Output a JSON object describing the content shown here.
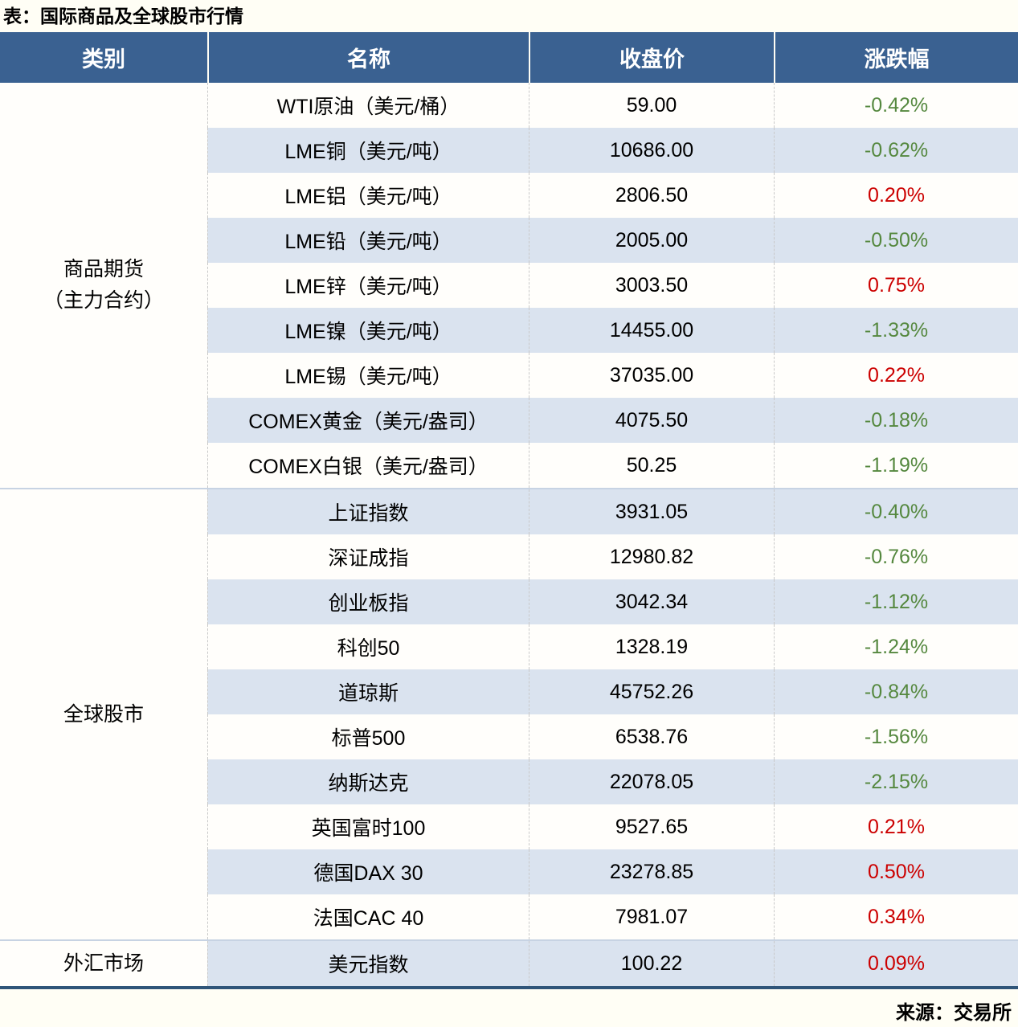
{
  "title": "表：国际商品及全球股市行情",
  "source": "来源：交易所",
  "colors": {
    "header_bg": "#3a6191",
    "header_text": "#ffffff",
    "row_bg": "#fffefb",
    "row_alt_bg": "#dae3ef",
    "up": "#cc0000",
    "down": "#55883f",
    "bottom_border": "#2f5579"
  },
  "chart_data": {
    "type": "table",
    "title": "表：国际商品及全球股市行情",
    "columns": [
      "类别",
      "名称",
      "收盘价",
      "涨跌幅"
    ],
    "sections": [
      {
        "category_lines": [
          "商品期货",
          "（主力合约）"
        ],
        "rows": [
          {
            "name": "WTI原油（美元/桶）",
            "close": "59.00",
            "change": "-0.42%",
            "dir": "down"
          },
          {
            "name": "LME铜（美元/吨）",
            "close": "10686.00",
            "change": "-0.62%",
            "dir": "down"
          },
          {
            "name": "LME铝（美元/吨）",
            "close": "2806.50",
            "change": "0.20%",
            "dir": "up"
          },
          {
            "name": "LME铅（美元/吨）",
            "close": "2005.00",
            "change": "-0.50%",
            "dir": "down"
          },
          {
            "name": "LME锌（美元/吨）",
            "close": "3003.50",
            "change": "0.75%",
            "dir": "up"
          },
          {
            "name": "LME镍（美元/吨）",
            "close": "14455.00",
            "change": "-1.33%",
            "dir": "down"
          },
          {
            "name": "LME锡（美元/吨）",
            "close": "37035.00",
            "change": "0.22%",
            "dir": "up"
          },
          {
            "name": "COMEX黄金（美元/盎司）",
            "close": "4075.50",
            "change": "-0.18%",
            "dir": "down"
          },
          {
            "name": "COMEX白银（美元/盎司）",
            "close": "50.25",
            "change": "-1.19%",
            "dir": "down"
          }
        ]
      },
      {
        "category_lines": [
          "全球股市"
        ],
        "rows": [
          {
            "name": "上证指数",
            "close": "3931.05",
            "change": "-0.40%",
            "dir": "down"
          },
          {
            "name": "深证成指",
            "close": "12980.82",
            "change": "-0.76%",
            "dir": "down"
          },
          {
            "name": "创业板指",
            "close": "3042.34",
            "change": "-1.12%",
            "dir": "down"
          },
          {
            "name": "科创50",
            "close": "1328.19",
            "change": "-1.24%",
            "dir": "down"
          },
          {
            "name": "道琼斯",
            "close": "45752.26",
            "change": "-0.84%",
            "dir": "down"
          },
          {
            "name": "标普500",
            "close": "6538.76",
            "change": "-1.56%",
            "dir": "down"
          },
          {
            "name": "纳斯达克",
            "close": "22078.05",
            "change": "-2.15%",
            "dir": "down"
          },
          {
            "name": "英国富时100",
            "close": "9527.65",
            "change": "0.21%",
            "dir": "up"
          },
          {
            "name": "德国DAX 30",
            "close": "23278.85",
            "change": "0.50%",
            "dir": "up"
          },
          {
            "name": "法国CAC 40",
            "close": "7981.07",
            "change": "0.34%",
            "dir": "up"
          }
        ]
      },
      {
        "category_lines": [
          "外汇市场"
        ],
        "rows": [
          {
            "name": "美元指数",
            "close": "100.22",
            "change": "0.09%",
            "dir": "up"
          }
        ]
      }
    ]
  }
}
